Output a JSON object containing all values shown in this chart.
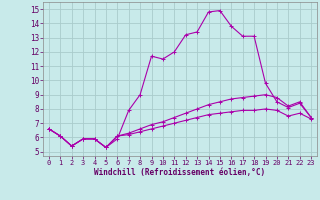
{
  "xlabel": "Windchill (Refroidissement éolien,°C)",
  "background_color": "#c8eaea",
  "grid_color": "#aacccc",
  "line_color": "#aa00aa",
  "x_ticks": [
    0,
    1,
    2,
    3,
    4,
    5,
    6,
    7,
    8,
    9,
    10,
    11,
    12,
    13,
    14,
    15,
    16,
    17,
    18,
    19,
    20,
    21,
    22,
    23
  ],
  "y_ticks": [
    5,
    6,
    7,
    8,
    9,
    10,
    11,
    12,
    13,
    14,
    15
  ],
  "ylim": [
    4.7,
    15.5
  ],
  "xlim": [
    -0.5,
    23.5
  ],
  "line1_x": [
    0,
    1,
    2,
    3,
    4,
    5,
    6,
    7,
    8,
    9,
    10,
    11,
    12,
    13,
    14,
    15,
    16,
    17,
    18,
    19,
    20,
    21,
    22,
    23
  ],
  "line1_y": [
    6.6,
    6.1,
    5.4,
    5.9,
    5.9,
    5.3,
    5.9,
    7.9,
    9.0,
    11.7,
    11.5,
    12.0,
    13.2,
    13.4,
    14.8,
    14.9,
    13.8,
    13.1,
    13.1,
    9.8,
    8.5,
    8.1,
    8.4,
    7.4
  ],
  "line2_x": [
    0,
    1,
    2,
    3,
    4,
    5,
    6,
    7,
    8,
    9,
    10,
    11,
    12,
    13,
    14,
    15,
    16,
    17,
    18,
    19,
    20,
    21,
    22,
    23
  ],
  "line2_y": [
    6.6,
    6.1,
    5.4,
    5.9,
    5.9,
    5.3,
    6.1,
    6.3,
    6.6,
    6.9,
    7.1,
    7.4,
    7.7,
    8.0,
    8.3,
    8.5,
    8.7,
    8.8,
    8.9,
    9.0,
    8.8,
    8.2,
    8.5,
    7.4
  ],
  "line3_x": [
    0,
    1,
    2,
    3,
    4,
    5,
    6,
    7,
    8,
    9,
    10,
    11,
    12,
    13,
    14,
    15,
    16,
    17,
    18,
    19,
    20,
    21,
    22,
    23
  ],
  "line3_y": [
    6.6,
    6.1,
    5.4,
    5.9,
    5.9,
    5.3,
    6.1,
    6.2,
    6.4,
    6.6,
    6.8,
    7.0,
    7.2,
    7.4,
    7.6,
    7.7,
    7.8,
    7.9,
    7.9,
    8.0,
    7.9,
    7.5,
    7.7,
    7.3
  ],
  "tick_color": "#660066",
  "tick_fontsize": 5.0,
  "xlabel_fontsize": 5.5
}
